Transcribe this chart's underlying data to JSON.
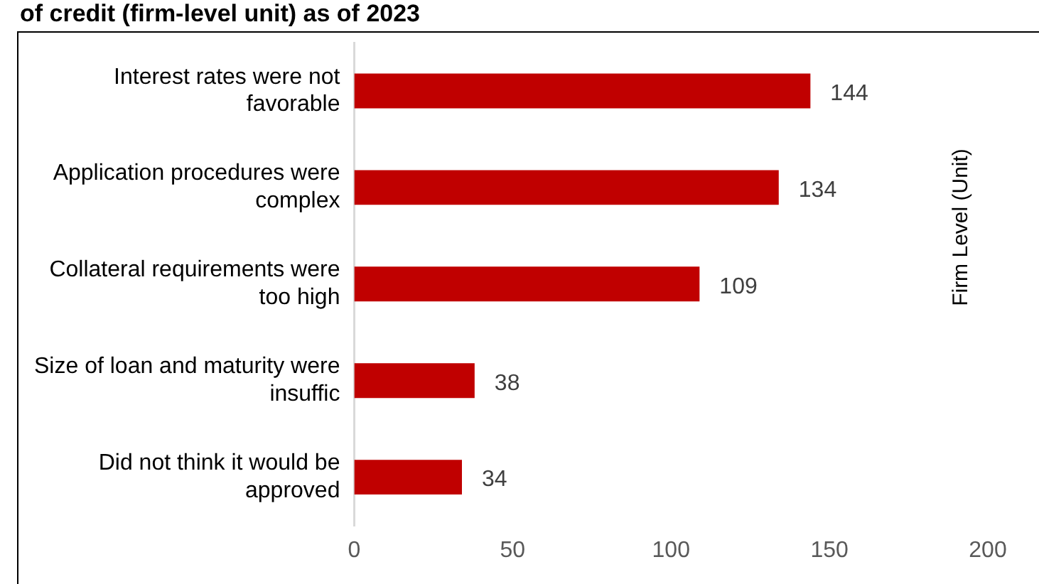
{
  "chart_data": {
    "type": "bar",
    "orientation": "horizontal",
    "title": "of credit (firm-level unit) as of 2023",
    "ylabel": "Firm Level (Unit)",
    "categories": [
      "Interest rates were not favorable",
      "Application procedures were complex",
      "Collateral requirements were too high",
      "Size of loan and maturity were insuffic",
      "Did not think it would be approved"
    ],
    "values": [
      144,
      134,
      109,
      38,
      34
    ],
    "color": "#c00000",
    "xlim": [
      0,
      200
    ],
    "xticks": [
      0,
      50,
      100,
      150,
      200
    ],
    "grid": false,
    "legend": false,
    "data_labels": true
  }
}
